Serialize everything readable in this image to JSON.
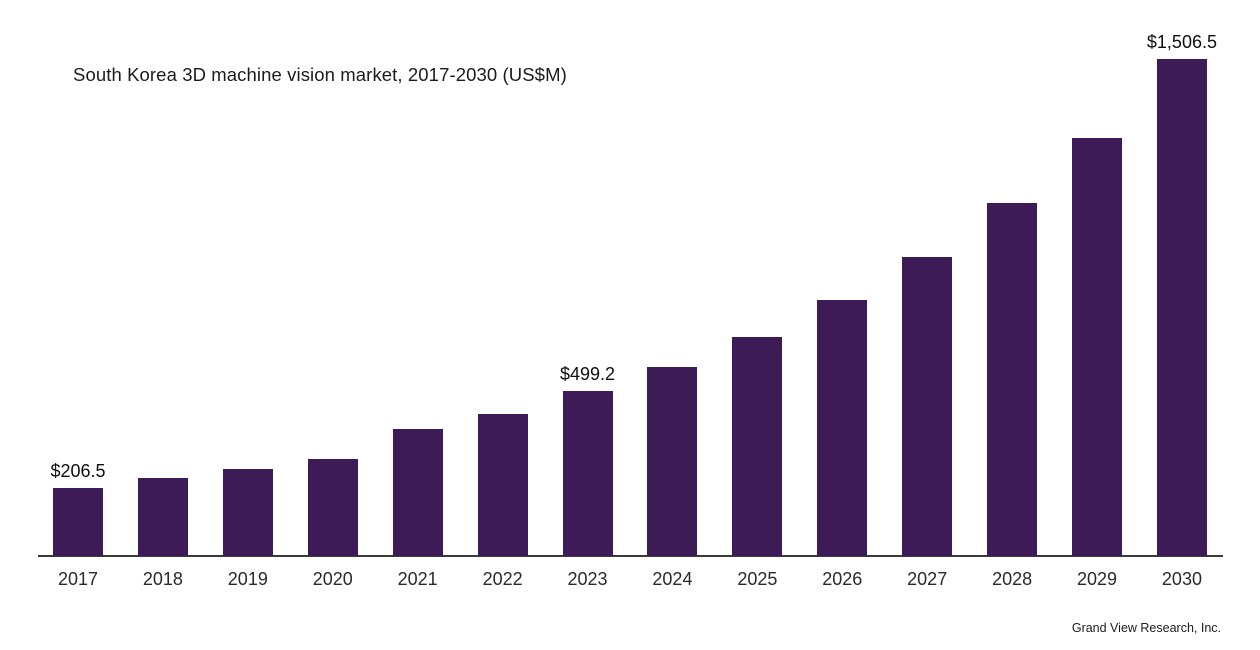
{
  "title": "South Korea 3D machine vision market, 2017-2030 (US$M)",
  "source": "Grand View Research, Inc.",
  "colors": {
    "bar": "#3c1b57",
    "axis": "#3a3a3a",
    "title_text": "#1b1b1b",
    "tick_text": "#2a2a2a",
    "value_text": "#0f0f0f",
    "background": "#ffffff"
  },
  "chart_data": {
    "type": "bar",
    "title": "South Korea 3D machine vision market, 2017-2030 (US$M)",
    "xlabel": "",
    "ylabel": "",
    "ylim": [
      0,
      1550
    ],
    "grid": false,
    "legend": false,
    "categories": [
      "2017",
      "2018",
      "2019",
      "2020",
      "2021",
      "2022",
      "2023",
      "2024",
      "2025",
      "2026",
      "2027",
      "2028",
      "2029",
      "2030"
    ],
    "values": [
      206.5,
      235,
      264,
      293,
      384,
      429,
      499.2,
      574,
      663,
      776,
      907,
      1069,
      1268,
      1506.5
    ],
    "value_labels": [
      "$206.5",
      null,
      null,
      null,
      null,
      null,
      "$499.2",
      null,
      null,
      null,
      null,
      null,
      null,
      "$1,506.5"
    ]
  }
}
